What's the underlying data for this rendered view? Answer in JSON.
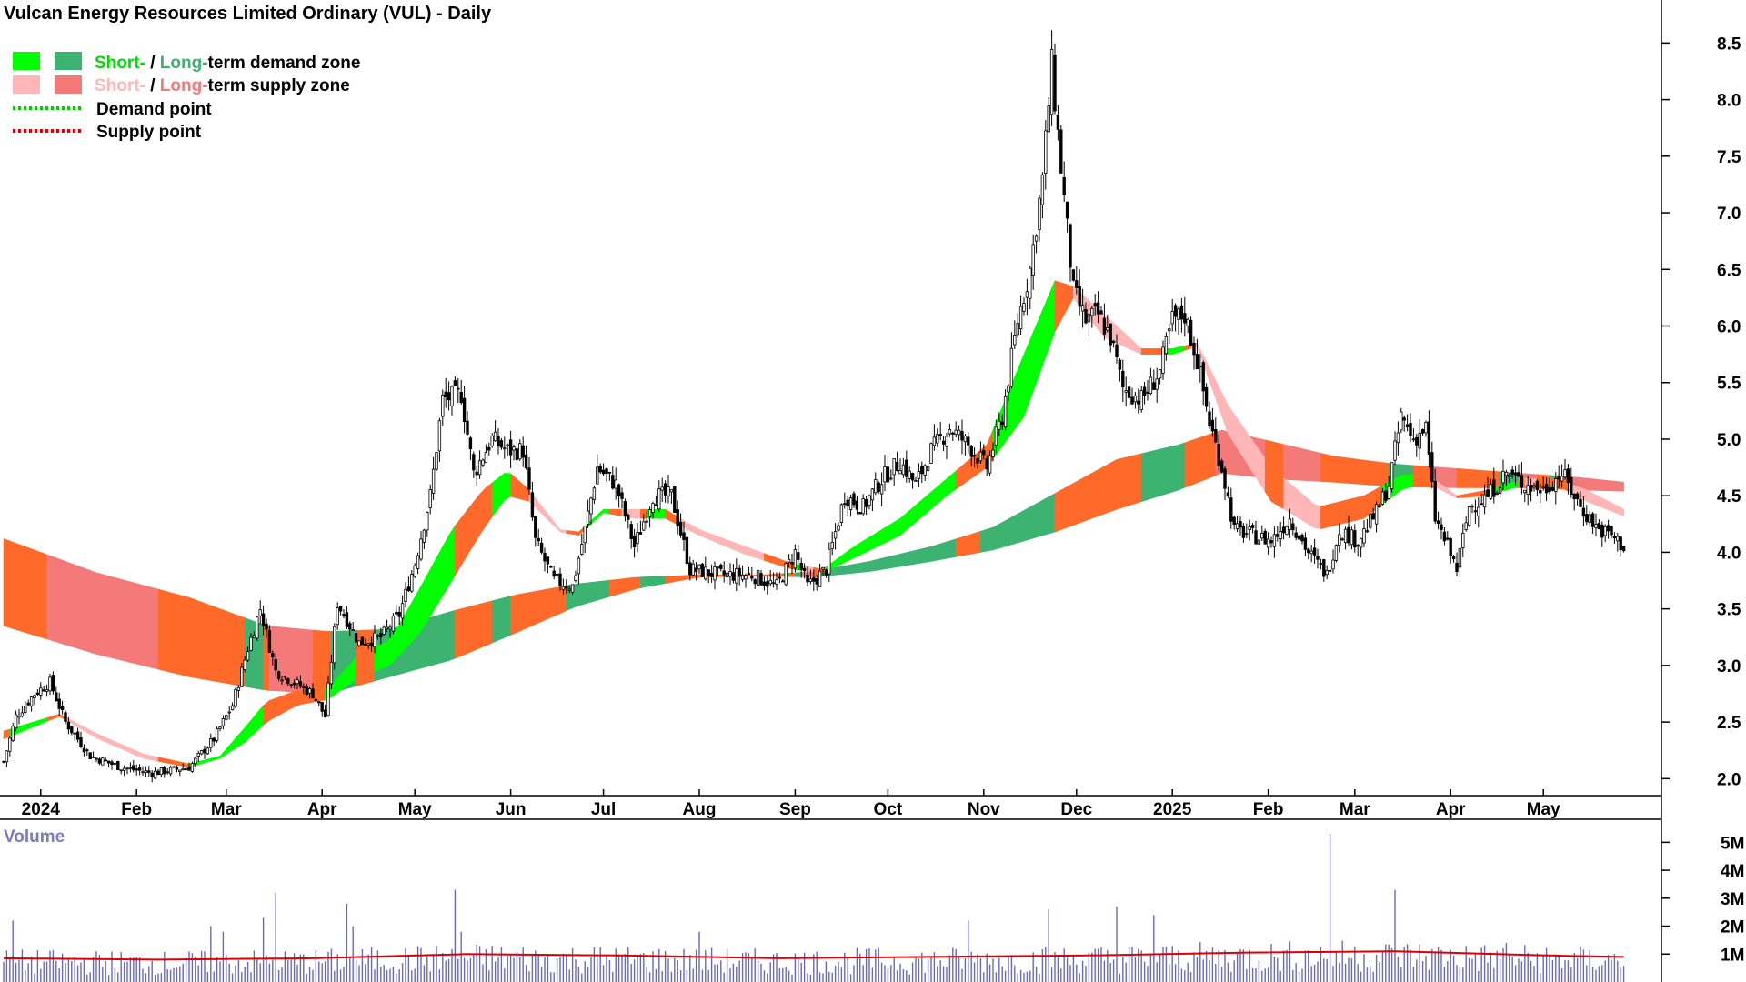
{
  "chart_data": {
    "type": "candlestick",
    "title": "Vulcan Energy Resources Limited Ordinary (VUL) - Daily",
    "legend": {
      "placement": "top-left",
      "items": [
        {
          "kind": "zone",
          "short_label": "Short-",
          "sep": " / ",
          "long_label": "Long-",
          "rest": "term demand zone",
          "short_color": "#00ff00",
          "long_color": "#3cb371"
        },
        {
          "kind": "zone",
          "short_label": "Short-",
          "sep": " / ",
          "long_label": "Long-",
          "rest": "term supply zone",
          "short_color": "#ffb6b6",
          "long_color": "#f47a7a"
        },
        {
          "kind": "line",
          "label": "Demand point",
          "color": "#00cc00"
        },
        {
          "kind": "line",
          "label": "Supply point",
          "color": "#dd0000"
        }
      ]
    },
    "price_axis": {
      "min": 1.85,
      "max": 8.72,
      "ticks": [
        "2.0",
        "2.5",
        "3.0",
        "3.5",
        "4.0",
        "4.5",
        "5.0",
        "5.5",
        "6.0",
        "6.5",
        "7.0",
        "7.5",
        "8.0",
        "8.5"
      ],
      "grid": false
    },
    "x_axis": {
      "labels": [
        {
          "text": "2024",
          "day": 12
        },
        {
          "text": "Feb",
          "day": 43
        },
        {
          "text": "Mar",
          "day": 72
        },
        {
          "text": "Apr",
          "day": 103
        },
        {
          "text": "May",
          "day": 133
        },
        {
          "text": "Jun",
          "day": 164
        },
        {
          "text": "Jul",
          "day": 194
        },
        {
          "text": "Aug",
          "day": 225
        },
        {
          "text": "Sep",
          "day": 256
        },
        {
          "text": "Oct",
          "day": 286
        },
        {
          "text": "Nov",
          "day": 317
        },
        {
          "text": "Dec",
          "day": 347
        },
        {
          "text": "2025",
          "day": 378
        },
        {
          "text": "Feb",
          "day": 409
        },
        {
          "text": "Mar",
          "day": 437
        },
        {
          "text": "Apr",
          "day": 468
        },
        {
          "text": "May",
          "day": 498
        }
      ]
    },
    "price_path": [
      {
        "day": 0,
        "close": 2.15
      },
      {
        "day": 4,
        "close": 2.55
      },
      {
        "day": 10,
        "close": 2.75
      },
      {
        "day": 15,
        "close": 2.85
      },
      {
        "day": 20,
        "close": 2.5
      },
      {
        "day": 28,
        "close": 2.2
      },
      {
        "day": 38,
        "close": 2.1
      },
      {
        "day": 48,
        "close": 2.05
      },
      {
        "day": 60,
        "close": 2.1
      },
      {
        "day": 68,
        "close": 2.35
      },
      {
        "day": 74,
        "close": 2.65
      },
      {
        "day": 79,
        "close": 3.15
      },
      {
        "day": 83,
        "close": 3.5
      },
      {
        "day": 88,
        "close": 2.95
      },
      {
        "day": 94,
        "close": 2.85
      },
      {
        "day": 100,
        "close": 2.75
      },
      {
        "day": 104,
        "close": 2.55
      },
      {
        "day": 108,
        "close": 3.55
      },
      {
        "day": 115,
        "close": 3.2
      },
      {
        "day": 122,
        "close": 3.25
      },
      {
        "day": 128,
        "close": 3.45
      },
      {
        "day": 133,
        "close": 3.9
      },
      {
        "day": 138,
        "close": 4.5
      },
      {
        "day": 142,
        "close": 5.35
      },
      {
        "day": 148,
        "close": 5.4
      },
      {
        "day": 152,
        "close": 4.7
      },
      {
        "day": 158,
        "close": 5.0
      },
      {
        "day": 163,
        "close": 4.9
      },
      {
        "day": 168,
        "close": 4.9
      },
      {
        "day": 172,
        "close": 4.1
      },
      {
        "day": 178,
        "close": 3.75
      },
      {
        "day": 184,
        "close": 3.7
      },
      {
        "day": 188,
        "close": 4.2
      },
      {
        "day": 192,
        "close": 4.75
      },
      {
        "day": 198,
        "close": 4.6
      },
      {
        "day": 204,
        "close": 4.05
      },
      {
        "day": 210,
        "close": 4.5
      },
      {
        "day": 216,
        "close": 4.5
      },
      {
        "day": 222,
        "close": 3.85
      },
      {
        "day": 232,
        "close": 3.8
      },
      {
        "day": 242,
        "close": 3.8
      },
      {
        "day": 250,
        "close": 3.7
      },
      {
        "day": 256,
        "close": 4.0
      },
      {
        "day": 260,
        "close": 3.7
      },
      {
        "day": 266,
        "close": 3.85
      },
      {
        "day": 272,
        "close": 4.5
      },
      {
        "day": 278,
        "close": 4.4
      },
      {
        "day": 284,
        "close": 4.65
      },
      {
        "day": 290,
        "close": 4.8
      },
      {
        "day": 295,
        "close": 4.6
      },
      {
        "day": 300,
        "close": 4.9
      },
      {
        "day": 306,
        "close": 5.1
      },
      {
        "day": 312,
        "close": 4.95
      },
      {
        "day": 318,
        "close": 4.75
      },
      {
        "day": 323,
        "close": 5.2
      },
      {
        "day": 328,
        "close": 6.05
      },
      {
        "day": 332,
        "close": 6.5
      },
      {
        "day": 336,
        "close": 7.3
      },
      {
        "day": 339,
        "close": 8.3
      },
      {
        "day": 342,
        "close": 7.4
      },
      {
        "day": 346,
        "close": 6.3
      },
      {
        "day": 350,
        "close": 6.05
      },
      {
        "day": 354,
        "close": 6.1
      },
      {
        "day": 358,
        "close": 5.9
      },
      {
        "day": 362,
        "close": 5.45
      },
      {
        "day": 368,
        "close": 5.35
      },
      {
        "day": 374,
        "close": 5.6
      },
      {
        "day": 378,
        "close": 6.05
      },
      {
        "day": 382,
        "close": 6.1
      },
      {
        "day": 386,
        "close": 5.7
      },
      {
        "day": 390,
        "close": 5.15
      },
      {
        "day": 394,
        "close": 4.75
      },
      {
        "day": 398,
        "close": 4.2
      },
      {
        "day": 404,
        "close": 4.15
      },
      {
        "day": 410,
        "close": 4.1
      },
      {
        "day": 416,
        "close": 4.3
      },
      {
        "day": 422,
        "close": 4.0
      },
      {
        "day": 428,
        "close": 3.8
      },
      {
        "day": 432,
        "close": 4.2
      },
      {
        "day": 438,
        "close": 4.1
      },
      {
        "day": 444,
        "close": 4.35
      },
      {
        "day": 448,
        "close": 4.6
      },
      {
        "day": 452,
        "close": 5.2
      },
      {
        "day": 456,
        "close": 5.0
      },
      {
        "day": 460,
        "close": 5.1
      },
      {
        "day": 463,
        "close": 4.3
      },
      {
        "day": 467,
        "close": 4.05
      },
      {
        "day": 470,
        "close": 3.85
      },
      {
        "day": 474,
        "close": 4.4
      },
      {
        "day": 480,
        "close": 4.5
      },
      {
        "day": 486,
        "close": 4.7
      },
      {
        "day": 492,
        "close": 4.6
      },
      {
        "day": 498,
        "close": 4.55
      },
      {
        "day": 504,
        "close": 4.7
      },
      {
        "day": 510,
        "close": 4.4
      },
      {
        "day": 516,
        "close": 4.2
      },
      {
        "day": 520,
        "close": 4.15
      },
      {
        "day": 524,
        "close": 4.05
      }
    ],
    "long_term_zone": [
      {
        "day": 0,
        "upper": 4.12,
        "lower": 3.35
      },
      {
        "day": 30,
        "upper": 3.82,
        "lower": 3.1
      },
      {
        "day": 60,
        "upper": 3.6,
        "lower": 2.9
      },
      {
        "day": 85,
        "upper": 3.35,
        "lower": 2.78
      },
      {
        "day": 105,
        "upper": 3.3,
        "lower": 2.75
      },
      {
        "day": 125,
        "upper": 3.32,
        "lower": 2.9
      },
      {
        "day": 145,
        "upper": 3.48,
        "lower": 3.05
      },
      {
        "day": 165,
        "upper": 3.62,
        "lower": 3.28
      },
      {
        "day": 185,
        "upper": 3.72,
        "lower": 3.52
      },
      {
        "day": 205,
        "upper": 3.78,
        "lower": 3.68
      },
      {
        "day": 225,
        "upper": 3.8,
        "lower": 3.78
      },
      {
        "day": 245,
        "upper": 3.8,
        "lower": 3.79
      },
      {
        "day": 262,
        "upper": 3.83,
        "lower": 3.78
      },
      {
        "day": 280,
        "upper": 3.92,
        "lower": 3.83
      },
      {
        "day": 300,
        "upper": 4.05,
        "lower": 3.92
      },
      {
        "day": 320,
        "upper": 4.22,
        "lower": 4.02
      },
      {
        "day": 340,
        "upper": 4.52,
        "lower": 4.18
      },
      {
        "day": 360,
        "upper": 4.82,
        "lower": 4.38
      },
      {
        "day": 380,
        "upper": 4.95,
        "lower": 4.55
      },
      {
        "day": 394,
        "upper": 5.08,
        "lower": 4.7
      },
      {
        "day": 410,
        "upper": 4.98,
        "lower": 4.65
      },
      {
        "day": 430,
        "upper": 4.85,
        "lower": 4.62
      },
      {
        "day": 450,
        "upper": 4.78,
        "lower": 4.58
      },
      {
        "day": 470,
        "upper": 4.74,
        "lower": 4.57
      },
      {
        "day": 490,
        "upper": 4.7,
        "lower": 4.57
      },
      {
        "day": 510,
        "upper": 4.66,
        "lower": 4.55
      },
      {
        "day": 524,
        "upper": 4.62,
        "lower": 4.54
      }
    ],
    "long_term_zone_color": {
      "demand": "#3cb371",
      "supply": "#f47a7a",
      "transition": "#ff6a2a"
    },
    "short_term_zone": [
      {
        "day": 0,
        "upper": 2.42,
        "lower": 2.35
      },
      {
        "day": 18,
        "upper": 2.57,
        "lower": 2.55
      },
      {
        "day": 30,
        "upper": 2.4,
        "lower": 2.36
      },
      {
        "day": 45,
        "upper": 2.22,
        "lower": 2.18
      },
      {
        "day": 60,
        "upper": 2.13,
        "lower": 2.1
      },
      {
        "day": 70,
        "upper": 2.2,
        "lower": 2.18
      },
      {
        "day": 78,
        "upper": 2.45,
        "lower": 2.32
      },
      {
        "day": 85,
        "upper": 2.68,
        "lower": 2.5
      },
      {
        "day": 95,
        "upper": 2.78,
        "lower": 2.65
      },
      {
        "day": 105,
        "upper": 2.8,
        "lower": 2.7
      },
      {
        "day": 115,
        "upper": 3.1,
        "lower": 2.9
      },
      {
        "day": 125,
        "upper": 3.22,
        "lower": 3.0
      },
      {
        "day": 135,
        "upper": 3.7,
        "lower": 3.3
      },
      {
        "day": 145,
        "upper": 4.2,
        "lower": 3.75
      },
      {
        "day": 155,
        "upper": 4.55,
        "lower": 4.2
      },
      {
        "day": 163,
        "upper": 4.72,
        "lower": 4.5
      },
      {
        "day": 170,
        "upper": 4.55,
        "lower": 4.45
      },
      {
        "day": 180,
        "upper": 4.2,
        "lower": 4.18
      },
      {
        "day": 186,
        "upper": 4.18,
        "lower": 4.15
      },
      {
        "day": 194,
        "upper": 4.38,
        "lower": 4.35
      },
      {
        "day": 204,
        "upper": 4.38,
        "lower": 4.3
      },
      {
        "day": 214,
        "upper": 4.38,
        "lower": 4.3
      },
      {
        "day": 225,
        "upper": 4.2,
        "lower": 4.15
      },
      {
        "day": 240,
        "upper": 4.05,
        "lower": 3.98
      },
      {
        "day": 255,
        "upper": 3.9,
        "lower": 3.85
      },
      {
        "day": 265,
        "upper": 3.85,
        "lower": 3.82
      },
      {
        "day": 275,
        "upper": 4.05,
        "lower": 3.95
      },
      {
        "day": 290,
        "upper": 4.3,
        "lower": 4.15
      },
      {
        "day": 305,
        "upper": 4.65,
        "lower": 4.5
      },
      {
        "day": 318,
        "upper": 4.95,
        "lower": 4.75
      },
      {
        "day": 330,
        "upper": 5.75,
        "lower": 5.2
      },
      {
        "day": 340,
        "upper": 6.4,
        "lower": 5.95
      },
      {
        "day": 346,
        "upper": 6.35,
        "lower": 6.25
      },
      {
        "day": 356,
        "upper": 6.1,
        "lower": 5.9
      },
      {
        "day": 368,
        "upper": 5.8,
        "lower": 5.75
      },
      {
        "day": 378,
        "upper": 5.8,
        "lower": 5.75
      },
      {
        "day": 386,
        "upper": 5.85,
        "lower": 5.82
      },
      {
        "day": 396,
        "upper": 5.3,
        "lower": 5.05
      },
      {
        "day": 410,
        "upper": 4.75,
        "lower": 4.45
      },
      {
        "day": 425,
        "upper": 4.4,
        "lower": 4.2
      },
      {
        "day": 440,
        "upper": 4.5,
        "lower": 4.3
      },
      {
        "day": 452,
        "upper": 4.68,
        "lower": 4.55
      },
      {
        "day": 460,
        "upper": 4.7,
        "lower": 4.62
      },
      {
        "day": 470,
        "upper": 4.5,
        "lower": 4.48
      },
      {
        "day": 480,
        "upper": 4.55,
        "lower": 4.5
      },
      {
        "day": 492,
        "upper": 4.65,
        "lower": 4.6
      },
      {
        "day": 502,
        "upper": 4.65,
        "lower": 4.6
      },
      {
        "day": 512,
        "upper": 4.55,
        "lower": 4.45
      },
      {
        "day": 524,
        "upper": 4.38,
        "lower": 4.32
      }
    ],
    "short_term_zone_color": {
      "demand": "#00ff00",
      "supply": "#ffb6b6",
      "transition": "#ff6a2a"
    },
    "volume": {
      "label": "Volume",
      "axis": {
        "max": 5.5,
        "ticks": [
          "1M",
          "2M",
          "3M",
          "4M",
          "5M"
        ]
      },
      "average": [
        {
          "day": 0,
          "v": 0.85
        },
        {
          "day": 50,
          "v": 0.8
        },
        {
          "day": 100,
          "v": 0.85
        },
        {
          "day": 150,
          "v": 1.0
        },
        {
          "day": 200,
          "v": 0.95
        },
        {
          "day": 250,
          "v": 0.85
        },
        {
          "day": 300,
          "v": 0.9
        },
        {
          "day": 350,
          "v": 0.95
        },
        {
          "day": 400,
          "v": 1.05
        },
        {
          "day": 450,
          "v": 1.1
        },
        {
          "day": 500,
          "v": 0.95
        },
        {
          "day": 524,
          "v": 0.9
        }
      ],
      "spikes": [
        {
          "day": 3,
          "v": 2.2
        },
        {
          "day": 67,
          "v": 2.0
        },
        {
          "day": 71,
          "v": 1.8
        },
        {
          "day": 88,
          "v": 3.2
        },
        {
          "day": 84,
          "v": 2.3
        },
        {
          "day": 111,
          "v": 2.8
        },
        {
          "day": 113,
          "v": 2.0
        },
        {
          "day": 146,
          "v": 3.3
        },
        {
          "day": 148,
          "v": 1.8
        },
        {
          "day": 225,
          "v": 1.8
        },
        {
          "day": 312,
          "v": 2.2
        },
        {
          "day": 338,
          "v": 2.6
        },
        {
          "day": 360,
          "v": 2.7
        },
        {
          "day": 372,
          "v": 2.4
        },
        {
          "day": 429,
          "v": 5.3
        },
        {
          "day": 450,
          "v": 3.3
        },
        {
          "day": 486,
          "v": 1.4
        }
      ]
    }
  }
}
